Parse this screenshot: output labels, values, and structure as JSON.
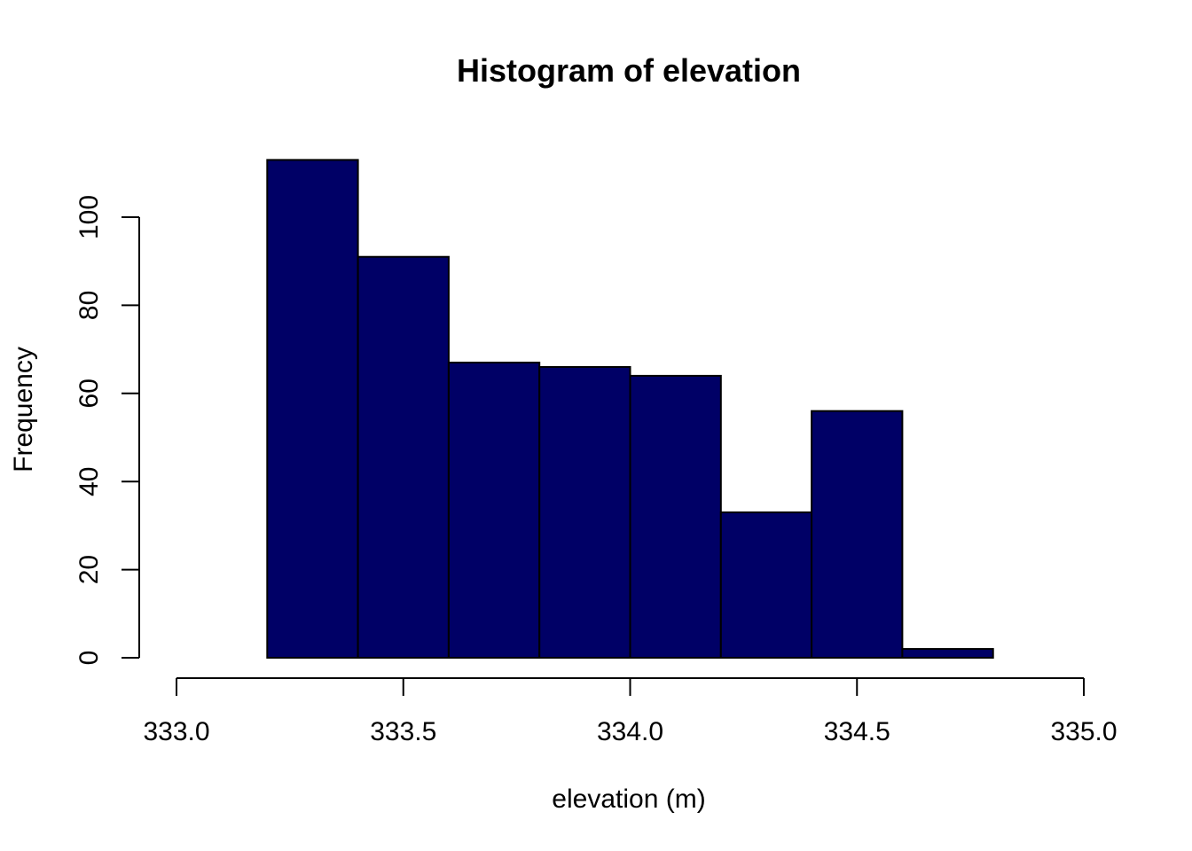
{
  "chart_data": {
    "type": "bar",
    "title": "Histogram of elevation",
    "xlabel": "elevation (m)",
    "ylabel": "Frequency",
    "bar_color": "#000066",
    "bins": [
      {
        "start": 333.2,
        "end": 333.4,
        "count": 113
      },
      {
        "start": 333.4,
        "end": 333.6,
        "count": 91
      },
      {
        "start": 333.6,
        "end": 333.8,
        "count": 67
      },
      {
        "start": 333.8,
        "end": 334.0,
        "count": 66
      },
      {
        "start": 334.0,
        "end": 334.2,
        "count": 64
      },
      {
        "start": 334.2,
        "end": 334.4,
        "count": 33
      },
      {
        "start": 334.4,
        "end": 334.6,
        "count": 56
      },
      {
        "start": 334.6,
        "end": 334.8,
        "count": 2
      }
    ],
    "xlim": [
      333.0,
      335.0
    ],
    "ylim": [
      0,
      113
    ],
    "x_ticks": [
      333.0,
      333.5,
      334.0,
      334.5,
      335.0
    ],
    "x_tick_labels": [
      "333.0",
      "333.5",
      "334.0",
      "334.5",
      "335.0"
    ],
    "y_ticks": [
      0,
      20,
      40,
      60,
      80,
      100
    ],
    "y_tick_labels": [
      "0",
      "20",
      "40",
      "60",
      "80",
      "100"
    ],
    "grid": false,
    "legend": "none"
  }
}
